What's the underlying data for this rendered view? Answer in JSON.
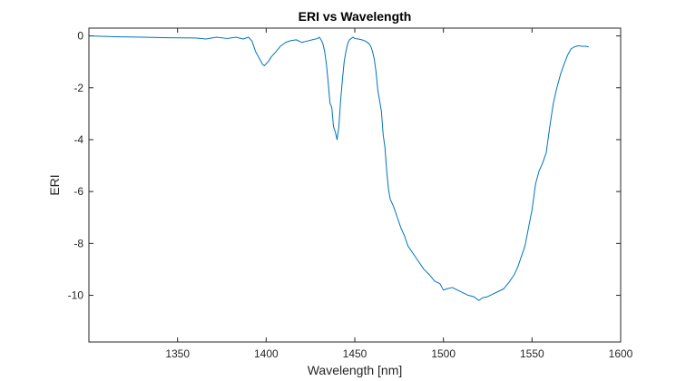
{
  "chart_data": {
    "type": "line",
    "title": "ERI vs Wavelength",
    "xlabel": "Wavelength [nm]",
    "ylabel": "ERI",
    "xlim": [
      1300,
      1600
    ],
    "ylim": [
      -11.8,
      0.3
    ],
    "xticks": [
      1350,
      1400,
      1450,
      1500,
      1550,
      1600
    ],
    "yticks": [
      0,
      -2,
      -4,
      -6,
      -8,
      -10
    ],
    "xtick_labels": [
      "1350",
      "1400",
      "1450",
      "1500",
      "1550",
      "1600"
    ],
    "ytick_labels": [
      "0",
      "-2",
      "-4",
      "-6",
      "-8",
      "-10"
    ],
    "grid": false,
    "legend": "none",
    "series": [
      {
        "color": "#0072BD",
        "x": [
          1301,
          1315,
          1330,
          1345,
          1360,
          1366,
          1372,
          1378,
          1383,
          1387,
          1390,
          1392,
          1394,
          1396,
          1398,
          1399,
          1401,
          1403,
          1405,
          1408,
          1411,
          1414,
          1417,
          1420,
          1423,
          1426,
          1429,
          1430,
          1431,
          1432,
          1433,
          1434,
          1435,
          1436,
          1437,
          1438,
          1439,
          1440,
          1441,
          1442,
          1443,
          1444,
          1445,
          1446,
          1447,
          1448,
          1449,
          1450,
          1452,
          1454,
          1456,
          1458,
          1459,
          1460,
          1461,
          1462,
          1463,
          1464,
          1465,
          1466,
          1467,
          1468,
          1469,
          1470,
          1472,
          1474,
          1476,
          1478,
          1480,
          1483,
          1486,
          1489,
          1492,
          1495,
          1498,
          1500,
          1502,
          1505,
          1508,
          1511,
          1514,
          1517,
          1520,
          1522,
          1525,
          1528,
          1531,
          1534,
          1537,
          1540,
          1542,
          1544,
          1546,
          1548,
          1550,
          1552,
          1554,
          1556,
          1558,
          1560,
          1562,
          1564,
          1566,
          1568,
          1570,
          1572,
          1574,
          1576,
          1578,
          1580,
          1582
        ],
        "y": [
          0.0,
          -0.03,
          -0.05,
          -0.07,
          -0.08,
          -0.12,
          -0.05,
          -0.1,
          -0.05,
          -0.12,
          -0.05,
          -0.2,
          -0.6,
          -0.85,
          -1.1,
          -1.15,
          -1.0,
          -0.8,
          -0.65,
          -0.4,
          -0.25,
          -0.18,
          -0.15,
          -0.25,
          -0.2,
          -0.15,
          -0.1,
          -0.05,
          -0.15,
          -0.3,
          -0.6,
          -1.1,
          -1.8,
          -2.6,
          -2.75,
          -3.5,
          -3.7,
          -4.0,
          -3.5,
          -2.5,
          -1.7,
          -1.0,
          -0.6,
          -0.3,
          -0.15,
          -0.1,
          -0.05,
          -0.1,
          -0.12,
          -0.15,
          -0.2,
          -0.3,
          -0.4,
          -0.6,
          -0.9,
          -1.4,
          -2.1,
          -2.5,
          -2.9,
          -3.8,
          -4.3,
          -5.2,
          -5.9,
          -6.3,
          -6.6,
          -7.0,
          -7.4,
          -7.7,
          -8.1,
          -8.4,
          -8.7,
          -9.0,
          -9.2,
          -9.45,
          -9.55,
          -9.8,
          -9.75,
          -9.7,
          -9.8,
          -9.9,
          -10.0,
          -10.05,
          -10.2,
          -10.1,
          -10.05,
          -9.95,
          -9.85,
          -9.75,
          -9.5,
          -9.2,
          -8.9,
          -8.5,
          -8.1,
          -7.4,
          -6.7,
          -5.7,
          -5.2,
          -4.9,
          -4.5,
          -3.5,
          -2.6,
          -2.0,
          -1.5,
          -1.1,
          -0.75,
          -0.5,
          -0.42,
          -0.38,
          -0.4,
          -0.4,
          -0.42
        ]
      }
    ]
  }
}
